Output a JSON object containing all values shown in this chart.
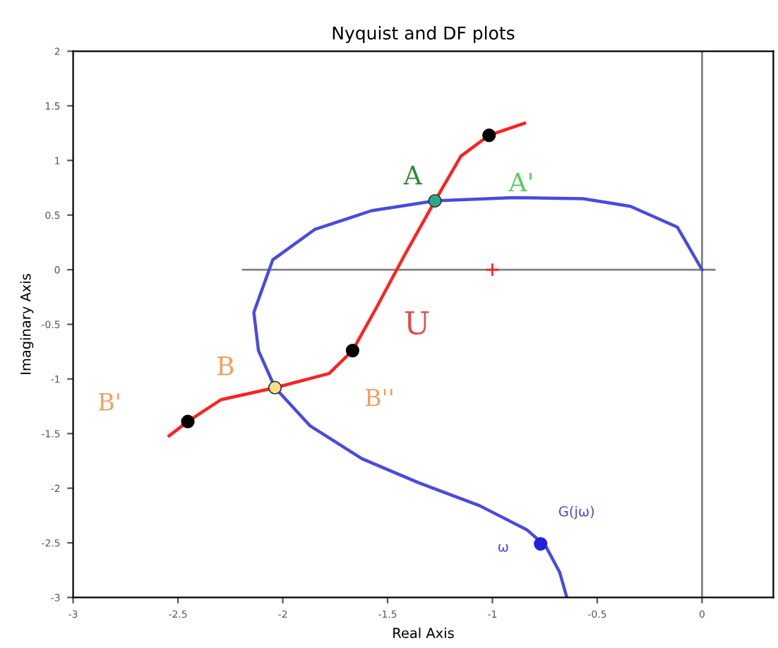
{
  "chart_data": {
    "type": "line",
    "title": "Nyquist and DF plots",
    "xlabel": "Real Axis",
    "ylabel": "Imaginary Axis",
    "xlim": [
      -3,
      0.34
    ],
    "ylim": [
      -3,
      2
    ],
    "xticks": [
      -3,
      -2.5,
      -2,
      -1.5,
      -1,
      -0.5,
      0
    ],
    "yticks": [
      -3,
      -2.5,
      -2,
      -1.5,
      -1,
      -0.5,
      0,
      0.5,
      1,
      1.5,
      2
    ],
    "grid": false,
    "legend": false,
    "ref_lines": [
      {
        "axis": "x",
        "value": 0,
        "color": "#808080"
      }
    ],
    "series": [
      {
        "color": "#808080",
        "x": [
          -2.19,
          0.06
        ],
        "values": [
          0,
          0
        ]
      },
      {
        "color": "#4a4adf",
        "x": [
          0,
          -0.118,
          -0.342,
          -0.567,
          -0.9,
          -1.274,
          -1.577,
          -1.846,
          -2.048,
          -2.138,
          -2.116,
          -2.037,
          -1.869,
          -1.622,
          -1.352,
          -1.061,
          -0.836,
          -0.746,
          -0.679,
          -0.645
        ],
        "values": [
          0,
          0.39,
          0.58,
          0.65,
          0.66,
          0.63,
          0.54,
          0.37,
          0.09,
          -0.39,
          -0.74,
          -1.08,
          -1.43,
          -1.73,
          -1.95,
          -2.16,
          -2.38,
          -2.53,
          -2.77,
          -3.0
        ]
      },
      {
        "color": "#ff2020",
        "x": [
          -2.542,
          -2.453,
          -2.295,
          -2.037,
          -1.779,
          -1.667,
          -1.554,
          -1.42,
          -1.274,
          -1.15,
          -1.016,
          -0.847
        ],
        "values": [
          -1.52,
          -1.39,
          -1.19,
          -1.08,
          -0.95,
          -0.74,
          -0.35,
          0.13,
          0.63,
          1.04,
          1.23,
          1.34
        ]
      },
      {
        "type": "scatter",
        "marker": "circle",
        "color": "#000000",
        "x": [
          -2.453,
          -1.667,
          -1.016
        ],
        "values": [
          -1.39,
          -0.74,
          1.23
        ]
      },
      {
        "type": "scatter",
        "marker": "circle",
        "colors": [
          "#2aa88a",
          "#f5e08a"
        ],
        "x": [
          -1.274,
          -2.037
        ],
        "values": [
          0.63,
          -1.08
        ]
      },
      {
        "type": "scatter",
        "marker": "circle",
        "color": "#2020e0",
        "x": [
          -0.77
        ],
        "values": [
          -2.51
        ]
      },
      {
        "type": "scatter",
        "marker": "cross",
        "color": "#ff2020",
        "x": [
          -1.0
        ],
        "values": [
          0
        ]
      }
    ],
    "annotations": [
      {
        "text": "A",
        "x": -1.274,
        "y": 0.63
      },
      {
        "text": "A'",
        "x": -1.016,
        "y": 1.23
      },
      {
        "text": "U",
        "x": -1.554,
        "y": -0.35
      },
      {
        "text": "B''",
        "x": -1.667,
        "y": -0.74
      },
      {
        "text": "B",
        "x": -2.037,
        "y": -1.08
      },
      {
        "text": "B'",
        "x": -2.453,
        "y": -1.39
      },
      {
        "text": "G(jω)",
        "x": -0.77,
        "y": -2.51
      },
      {
        "text": "ω",
        "x": -0.77,
        "y": -2.51
      }
    ]
  }
}
